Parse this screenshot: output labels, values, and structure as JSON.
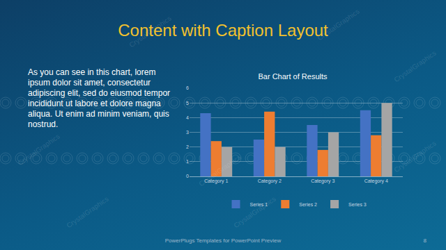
{
  "slide": {
    "title": "Content with Caption Layout",
    "caption": "As you can see in this chart, lorem ipsum dolor sit amet, consectetur adipiscing elit, sed do eiusmod tempor incididunt ut labore et dolore magna aliqua. Ut enim ad minim veniam, quis nostrud.",
    "footer": "PowerPlugs Templates for PowerPoint Preview",
    "page_number": "8",
    "watermark": "CrystalGraphics"
  },
  "chart_data": {
    "type": "bar",
    "title": "Bar Chart of Results",
    "categories": [
      "Category 1",
      "Category 2",
      "Category 3",
      "Category 4"
    ],
    "series": [
      {
        "name": "Series 1",
        "color": "#4472c4",
        "values": [
          4.3,
          2.5,
          3.5,
          4.5
        ]
      },
      {
        "name": "Series 2",
        "color": "#ed7d31",
        "values": [
          2.4,
          4.4,
          1.8,
          2.8
        ]
      },
      {
        "name": "Series 3",
        "color": "#a5a5a5",
        "values": [
          2.0,
          2.0,
          3.0,
          5.0
        ]
      }
    ],
    "ylim": [
      0,
      6
    ],
    "yticks": [
      0,
      1,
      2,
      3,
      4,
      5,
      6
    ],
    "grid": true,
    "legend": "bottom"
  }
}
